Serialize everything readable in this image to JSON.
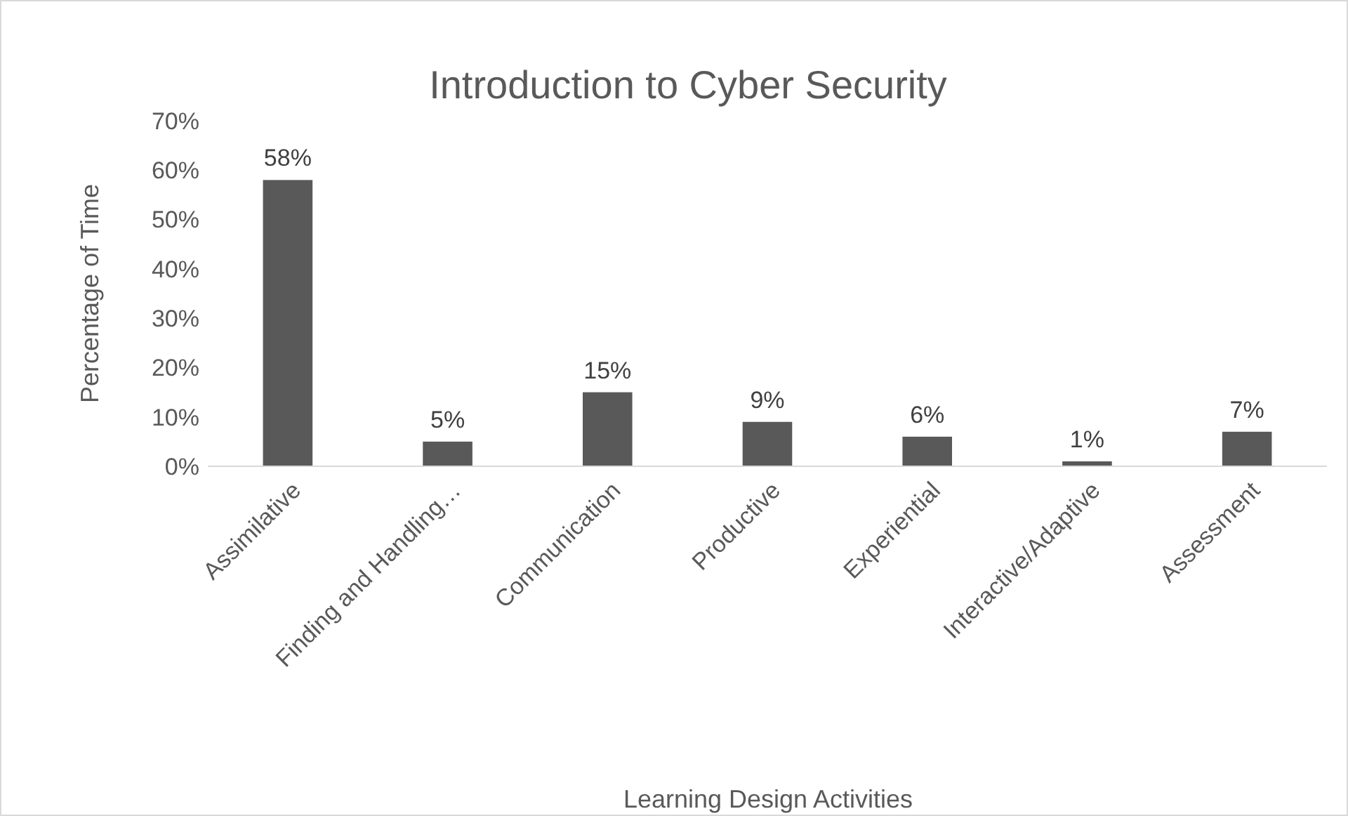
{
  "chart_data": {
    "type": "bar",
    "title": "Introduction to Cyber Security",
    "xlabel": "Learning Design Activities",
    "ylabel": "Percentage of Time",
    "categories": [
      "Assimilative",
      "Finding and Handling…",
      "Communication",
      "Productive",
      "Experiential",
      "Interactive/Adaptive",
      "Assessment"
    ],
    "values": [
      58,
      5,
      15,
      9,
      6,
      1,
      7
    ],
    "color": "#595959",
    "value_labels": [
      "58%",
      "5%",
      "15%",
      "9%",
      "6%",
      "1%",
      "7%"
    ],
    "ylim": [
      0,
      70
    ],
    "yticks": [
      {
        "value": 0,
        "label": "0%"
      },
      {
        "value": 10,
        "label": "10%"
      },
      {
        "value": 20,
        "label": "20%"
      },
      {
        "value": 30,
        "label": "30%"
      },
      {
        "value": 40,
        "label": "40%"
      },
      {
        "value": 50,
        "label": "50%"
      },
      {
        "value": 60,
        "label": "60%"
      },
      {
        "value": 70,
        "label": "70%"
      }
    ],
    "grid": false
  }
}
